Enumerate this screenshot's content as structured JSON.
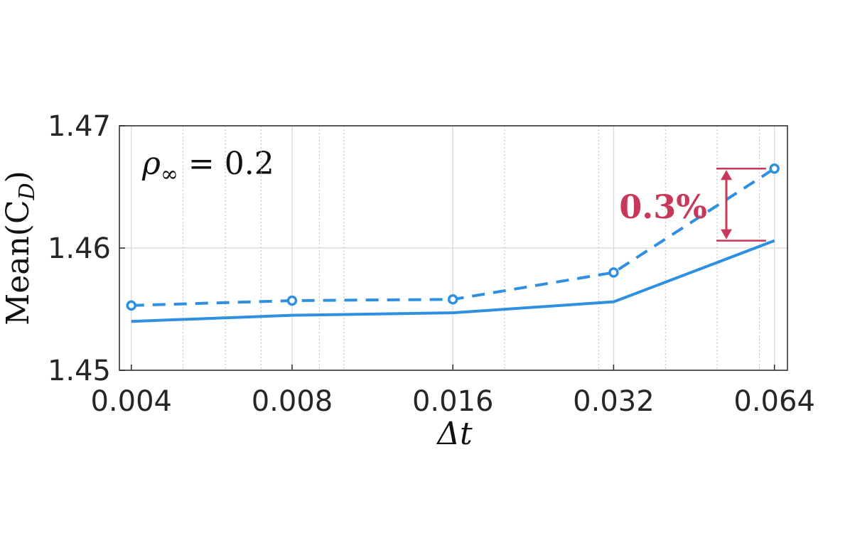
{
  "chart_data": {
    "type": "line",
    "x": [
      0.004,
      0.008,
      0.016,
      0.032,
      0.064
    ],
    "series": [
      {
        "color": "#2f8fe0",
        "style": "solid",
        "marker": false,
        "values": [
          1.454,
          1.4545,
          1.4547,
          1.4556,
          1.4606
        ]
      },
      {
        "color": "#2f8fe0",
        "style": "dashed",
        "marker": true,
        "values": [
          1.4553,
          1.4557,
          1.4558,
          1.458,
          1.4665
        ]
      }
    ],
    "xlabel": "Δt",
    "ylabel": [
      "Mean(C",
      "D",
      ")"
    ],
    "xscale": "log",
    "xlim": [
      0.0038,
      0.0677
    ],
    "ylim": [
      1.45,
      1.47
    ],
    "xticks": [
      0.004,
      0.008,
      0.016,
      0.032,
      0.064
    ],
    "xminorticks": [
      0.005,
      0.006,
      0.007,
      0.009,
      0.01,
      0.02,
      0.03,
      0.04,
      0.05,
      0.06
    ],
    "yticks": [
      1.45,
      1.46,
      1.47
    ],
    "grid": true,
    "annotations": {
      "param": [
        "ρ",
        "∞",
        " = 0.2"
      ],
      "difference": "0.3%",
      "difference_color": "#c8385a"
    }
  }
}
